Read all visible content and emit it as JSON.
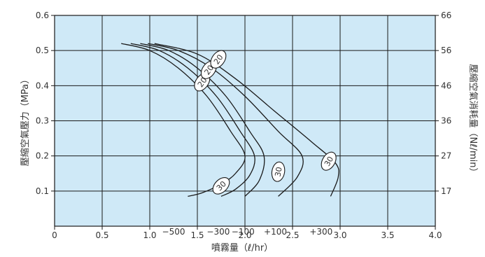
{
  "chart_data": {
    "type": "line",
    "xlabel": "噴霧量（ℓ/hr）",
    "ylabel": "壓縮空氣壓力（MPa）",
    "y2label": "壓縮空氣消耗量（Nℓ/min）",
    "x_ticks": [
      "0",
      "0.5",
      "1.0",
      "1.5",
      "2.0",
      "2.5",
      "3.0",
      "3.5",
      "4.0"
    ],
    "y_ticks": [
      "0.1",
      "0.2",
      "0.3",
      "0.4",
      "0.5",
      "0.6"
    ],
    "y2_ticks": [
      "17",
      "27",
      "36",
      "46",
      "56",
      "66"
    ],
    "xlim": [
      0,
      4.0
    ],
    "ylim": [
      0,
      0.6
    ],
    "grid": true,
    "colors": {
      "plot_bg": "#cfe9f7",
      "grid": "#1a1a1a",
      "line": "#1a1a1a"
    },
    "series": [
      {
        "name": "−500",
        "x": [
          0.7,
          1.0,
          1.3,
          1.6,
          1.85,
          2.0,
          1.9,
          1.75,
          1.55,
          1.4
        ],
        "y": [
          0.52,
          0.5,
          0.45,
          0.37,
          0.27,
          0.2,
          0.15,
          0.12,
          0.095,
          0.085
        ]
      },
      {
        "name": "−300",
        "x": [
          0.8,
          1.1,
          1.4,
          1.7,
          1.95,
          2.1,
          2.05,
          1.9,
          1.75
        ],
        "y": [
          0.52,
          0.5,
          0.45,
          0.37,
          0.27,
          0.2,
          0.145,
          0.105,
          0.085
        ]
      },
      {
        "name": "−100",
        "x": [
          0.9,
          1.2,
          1.5,
          1.8,
          2.05,
          2.2,
          2.15,
          2.0
        ],
        "y": [
          0.52,
          0.5,
          0.45,
          0.37,
          0.27,
          0.2,
          0.13,
          0.085
        ]
      },
      {
        "name": "+100",
        "x": [
          0.98,
          1.3,
          1.65,
          2.0,
          2.35,
          2.6,
          2.55,
          2.35
        ],
        "y": [
          0.52,
          0.5,
          0.45,
          0.37,
          0.27,
          0.2,
          0.14,
          0.085
        ]
      },
      {
        "name": "+300",
        "x": [
          1.05,
          1.5,
          1.9,
          2.3,
          2.7,
          2.95,
          2.98,
          2.9
        ],
        "y": [
          0.52,
          0.49,
          0.42,
          0.33,
          0.24,
          0.18,
          0.14,
          0.085
        ]
      }
    ],
    "annotations": [
      {
        "text": "−500",
        "x": 1.25,
        "y": -0.04
      },
      {
        "text": "−300",
        "x": 1.72,
        "y": -0.04
      },
      {
        "text": "−100",
        "x": 1.98,
        "y": -0.04
      },
      {
        "text": "+100",
        "x": 2.32,
        "y": -0.04
      },
      {
        "text": "+300",
        "x": 2.8,
        "y": -0.04
      }
    ],
    "labels": [
      {
        "text": "20",
        "x": 1.55,
        "y": 0.41,
        "angle": -55
      },
      {
        "text": "20",
        "x": 1.62,
        "y": 0.445,
        "angle": -55
      },
      {
        "text": "20",
        "x": 1.72,
        "y": 0.475,
        "angle": -55
      },
      {
        "text": "30",
        "x": 1.75,
        "y": 0.115,
        "angle": -45
      },
      {
        "text": "30",
        "x": 2.35,
        "y": 0.155,
        "angle": -80
      },
      {
        "text": "30",
        "x": 2.88,
        "y": 0.185,
        "angle": -60
      }
    ]
  }
}
